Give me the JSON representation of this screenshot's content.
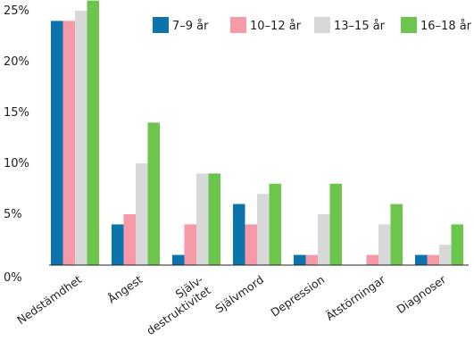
{
  "chart_data": {
    "type": "bar",
    "categories": [
      "Nedstämdhet",
      "Ångest",
      "Själv-destruktivitet",
      "Självmord",
      "Depression",
      "Ätstörningar",
      "Diagnoser"
    ],
    "category_label_lines": [
      [
        "Nedstämdhet"
      ],
      [
        "Ångest"
      ],
      [
        "Själv-",
        "destruktivitet"
      ],
      [
        "Självmord"
      ],
      [
        "Depression"
      ],
      [
        "Ätstörningar"
      ],
      [
        "Diagnoser"
      ]
    ],
    "series": [
      {
        "name": "7–9 år",
        "color": "#0b74ad",
        "values": [
          24,
          4,
          1,
          6,
          1,
          0,
          1
        ]
      },
      {
        "name": "10–12 år",
        "color": "#f59aa6",
        "values": [
          24,
          5,
          4,
          4,
          1,
          1,
          1
        ]
      },
      {
        "name": "13–15 år",
        "color": "#d8d8d8",
        "values": [
          25,
          10,
          9,
          7,
          5,
          4,
          2
        ]
      },
      {
        "name": "16–18 år",
        "color": "#6cc64c",
        "values": [
          26,
          14,
          9,
          8,
          8,
          6,
          4
        ]
      }
    ],
    "y_ticks": [
      0,
      5,
      10,
      15,
      20,
      25
    ],
    "y_tick_labels": [
      "0%",
      "5%",
      "10%",
      "15%",
      "20%",
      "25%"
    ],
    "ylim": [
      0,
      26
    ],
    "grid": false,
    "legend_position": "top-right",
    "title": "",
    "xlabel": "",
    "ylabel": ""
  }
}
